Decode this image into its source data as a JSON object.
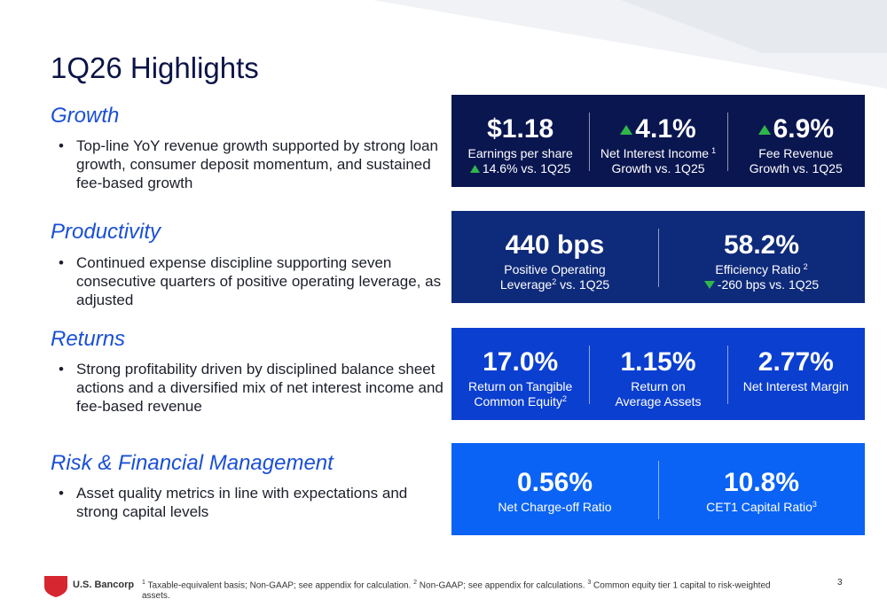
{
  "title": "1Q26 Highlights",
  "sections": [
    {
      "heading": "Growth",
      "bullet": "Top-line YoY revenue growth supported by strong loan growth, consumer deposit momentum, and sustained fee-based growth"
    },
    {
      "heading": "Productivity",
      "bullet": "Continued expense discipline supporting seven consecutive quarters of positive operating leverage, as adjusted"
    },
    {
      "heading": "Returns",
      "bullet": "Strong profitability driven by disciplined balance sheet actions and a diversified mix of net interest income and fee-based revenue"
    },
    {
      "heading": "Risk & Financial Management",
      "bullet": "Asset quality metrics in line with expectations and strong capital levels"
    }
  ],
  "panels": [
    {
      "metrics": [
        {
          "value": "$1.18",
          "lines": [
            [
              "Earnings per share"
            ],
            [
              "14.6% vs. 1Q25"
            ]
          ]
        },
        {
          "value": "4.1%",
          "lines": [
            [
              "Net Interest Income",
              "1"
            ],
            [
              "Growth vs. 1Q25"
            ]
          ]
        },
        {
          "value": "6.9%",
          "lines": [
            [
              "Fee Revenue"
            ],
            [
              "Growth vs. 1Q25"
            ]
          ]
        }
      ]
    },
    {
      "metrics": [
        {
          "value": "440 bps",
          "lines": [
            [
              "Positive Operating"
            ],
            [
              "Leverage",
              "2",
              " vs. 1Q25"
            ]
          ]
        },
        {
          "value": "58.2%",
          "lines": [
            [
              "Efficiency Ratio",
              "2"
            ],
            [
              "-260 bps vs. 1Q25"
            ]
          ]
        }
      ]
    },
    {
      "metrics": [
        {
          "value": "17.0%",
          "lines": [
            [
              "Return on Tangible"
            ],
            [
              "Common Equity",
              "2"
            ]
          ]
        },
        {
          "value": "1.15%",
          "lines": [
            [
              "Return on"
            ],
            [
              "Average Assets"
            ]
          ]
        },
        {
          "value": "2.77%",
          "lines": [
            [
              "Net Interest Margin"
            ]
          ]
        }
      ]
    },
    {
      "metrics": [
        {
          "value": "0.56%",
          "lines": [
            [
              "Net Charge-off Ratio"
            ]
          ]
        },
        {
          "value": "10.8%",
          "lines": [
            [
              "CET1 Capital Ratio",
              "3"
            ]
          ]
        }
      ]
    }
  ],
  "footer": {
    "brand": "U.S. Bancorp",
    "notes": [
      {
        "mark": "1",
        "text": " Taxable-equivalent basis; Non-GAAP; see appendix for calculation. "
      },
      {
        "mark": "2",
        "text": " Non-GAAP; see appendix for calculations. "
      },
      {
        "mark": "3",
        "text": " Common equity tier 1 capital to risk-weighted assets."
      }
    ],
    "page": "3"
  }
}
